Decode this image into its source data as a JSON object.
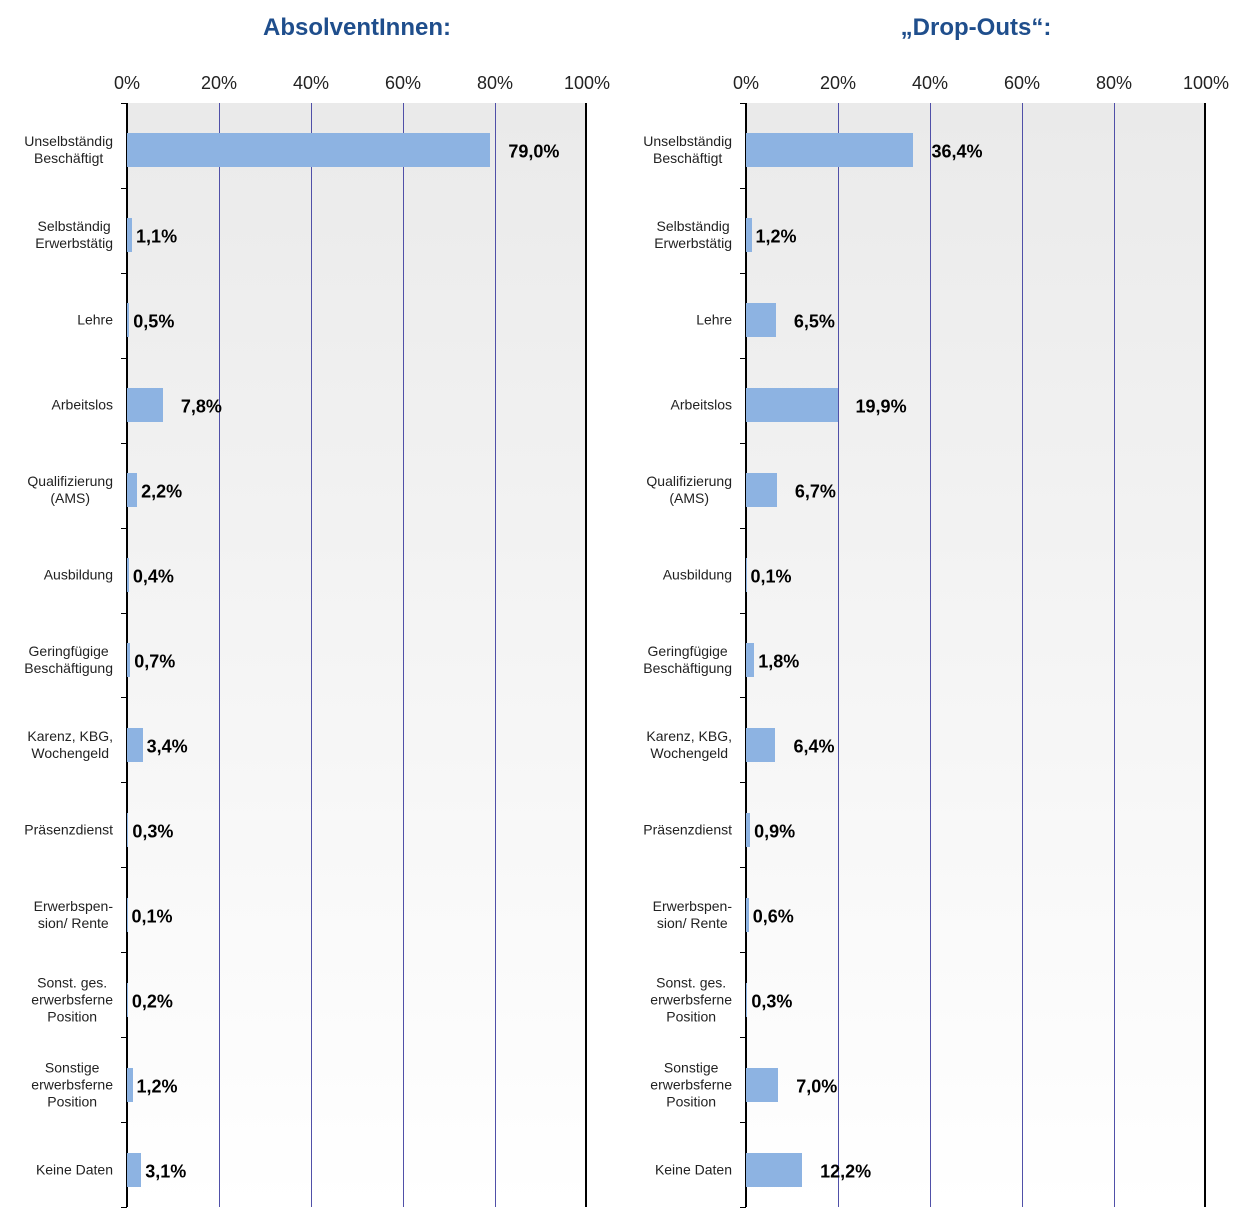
{
  "chart_data": [
    {
      "type": "hbar",
      "title": "AbsolventInnen:",
      "color": "#8db3e2",
      "categories": [
        "Unselbständig\nBeschäftigt",
        "Selbständig\nErwerbstätig",
        "Lehre",
        "Arbeitslos",
        "Qualifizierung\n(AMS)",
        "Ausbildung",
        "Geringfügige\nBeschäftigung",
        "Karenz, KBG,\nWochengeld",
        "Präsenzdienst",
        "Erwerbspen-\nsion/ Rente",
        "Sonst. ges.\nerwerbsferne\nPosition",
        "Sonstige\nerwerbsferne\nPosition",
        "Keine Daten"
      ],
      "values": [
        79.0,
        1.1,
        0.5,
        7.8,
        2.2,
        0.4,
        0.7,
        3.4,
        0.3,
        0.1,
        0.2,
        1.2,
        3.1
      ],
      "value_labels": [
        "79,0%",
        "1,1%",
        "0,5%",
        "7,8%",
        "2,2%",
        "0,4%",
        "0,7%",
        "3,4%",
        "0,3%",
        "0,1%",
        "0,2%",
        "1,2%",
        "3,1%"
      ],
      "xlim": [
        0,
        100
      ],
      "xticks": [
        {
          "value": 0,
          "label": "0%"
        },
        {
          "value": 20,
          "label": "20%"
        },
        {
          "value": 40,
          "label": "40%"
        },
        {
          "value": 60,
          "label": "60%"
        },
        {
          "value": 80,
          "label": "80%"
        },
        {
          "value": 100,
          "label": "100%"
        }
      ],
      "grid": true
    },
    {
      "type": "hbar",
      "title": "„Drop-Outs“:",
      "color": "#8db3e2",
      "categories": [
        "Unselbständig\nBeschäftigt",
        "Selbständig\nErwerbstätig",
        "Lehre",
        "Arbeitslos",
        "Qualifizierung\n(AMS)",
        "Ausbildung",
        "Geringfügige\nBeschäftigung",
        "Karenz, KBG,\nWochengeld",
        "Präsenzdienst",
        "Erwerbspen-\nsion/ Rente",
        "Sonst. ges.\nerwerbsferne\nPosition",
        "Sonstige\nerwerbsferne\nPosition",
        "Keine Daten"
      ],
      "values": [
        36.4,
        1.2,
        6.5,
        19.9,
        6.7,
        0.1,
        1.8,
        6.4,
        0.9,
        0.6,
        0.3,
        7.0,
        12.2
      ],
      "value_labels": [
        "36,4%",
        "1,2%",
        "6,5%",
        "19,9%",
        "6,7%",
        "0,1%",
        "1,8%",
        "6,4%",
        "0,9%",
        "0,6%",
        "0,3%",
        "7,0%",
        "12,2%"
      ],
      "xlim": [
        0,
        100
      ],
      "xticks": [
        {
          "value": 0,
          "label": "0%"
        },
        {
          "value": 20,
          "label": "20%"
        },
        {
          "value": 40,
          "label": "40%"
        },
        {
          "value": 60,
          "label": "60%"
        },
        {
          "value": 80,
          "label": "80%"
        },
        {
          "value": 100,
          "label": "100%"
        }
      ],
      "grid": true
    }
  ]
}
